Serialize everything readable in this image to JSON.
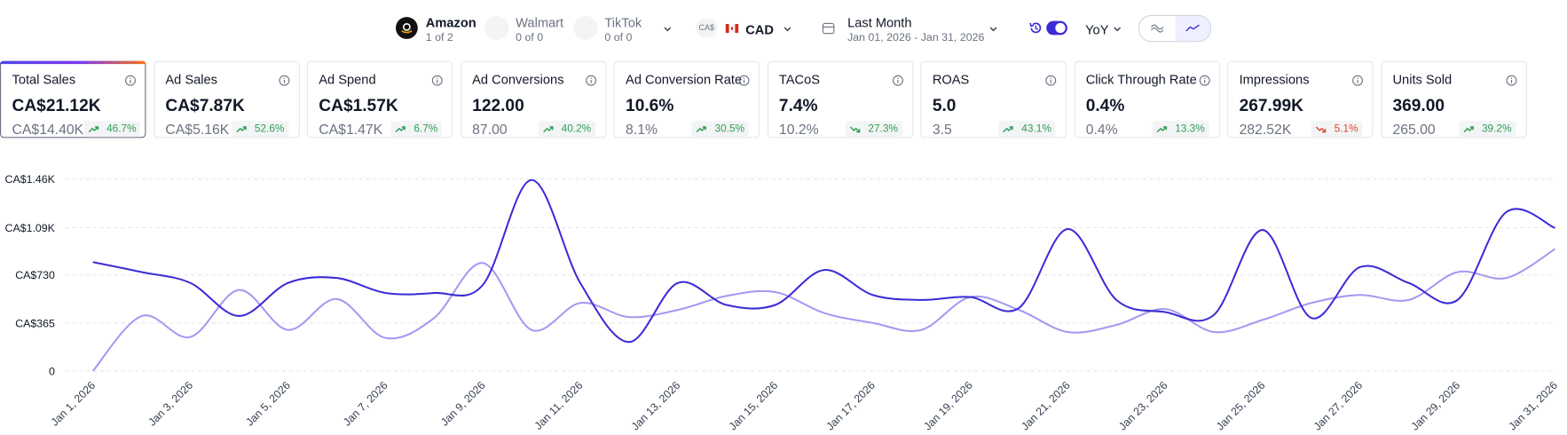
{
  "marketplaces": [
    {
      "name": "Amazon",
      "count": "1 of 2"
    },
    {
      "name": "Walmart",
      "count": "0 of 0"
    },
    {
      "name": "TikTok",
      "count": "0 of 0"
    }
  ],
  "currency": {
    "symbol": "CA$",
    "code": "CAD"
  },
  "date_range": {
    "label": "Last Month",
    "range": "Jan 01, 2026 - Jan 31, 2026"
  },
  "comparison": "YoY",
  "metrics": [
    {
      "title": "Total Sales",
      "value": "CA$21.12K",
      "previous": "CA$14.40K",
      "change": "46.7%",
      "trend": "up",
      "color": "#2f9e55"
    },
    {
      "title": "Ad Sales",
      "value": "CA$7.87K",
      "previous": "CA$5.16K",
      "change": "52.6%",
      "trend": "up",
      "color": "#2f9e55"
    },
    {
      "title": "Ad Spend",
      "value": "CA$1.57K",
      "previous": "CA$1.47K",
      "change": "6.7%",
      "trend": "up",
      "color": "#2f9e55"
    },
    {
      "title": "Ad Conversions",
      "value": "122.00",
      "previous": "87.00",
      "change": "40.2%",
      "trend": "up",
      "color": "#2f9e55"
    },
    {
      "title": "Ad Conversion Rate",
      "value": "10.6%",
      "previous": "8.1%",
      "change": "30.5%",
      "trend": "up",
      "color": "#2f9e55"
    },
    {
      "title": "TACoS",
      "value": "7.4%",
      "previous": "10.2%",
      "change": "27.3%",
      "trend": "down",
      "color": "#2f9e55"
    },
    {
      "title": "ROAS",
      "value": "5.0",
      "previous": "3.5",
      "change": "43.1%",
      "trend": "up",
      "color": "#2f9e55"
    },
    {
      "title": "Click Through Rate",
      "value": "0.4%",
      "previous": "0.4%",
      "change": "13.3%",
      "trend": "up",
      "color": "#2f9e55"
    },
    {
      "title": "Impressions",
      "value": "267.99K",
      "previous": "282.52K",
      "change": "5.1%",
      "trend": "down",
      "color": "#e0492f"
    },
    {
      "title": "Units Sold",
      "value": "369.00",
      "previous": "265.00",
      "change": "39.2%",
      "trend": "up",
      "color": "#2f9e55"
    }
  ],
  "chart_data": {
    "type": "line",
    "categories": [
      "Jan 1, 2026",
      null,
      "Jan 3, 2026",
      null,
      "Jan 5, 2026",
      null,
      "Jan 7, 2026",
      null,
      "Jan 9, 2026",
      null,
      "Jan 11, 2026",
      null,
      "Jan 13, 2026",
      null,
      "Jan 15, 2026",
      null,
      "Jan 17, 2026",
      null,
      "Jan 19, 2026",
      null,
      "Jan 21, 2026",
      null,
      "Jan 23, 2026",
      null,
      "Jan 25, 2026",
      null,
      "Jan 27, 2026",
      null,
      "Jan 29, 2026",
      null,
      "Jan 31, 2026"
    ],
    "series": [
      {
        "color": "#3b2bd6",
        "values": [
          828,
          752,
          669,
          418,
          669,
          707,
          593,
          593,
          654,
          1452,
          669,
          220,
          669,
          502,
          502,
          768,
          578,
          540,
          562,
          479,
          1079,
          540,
          448,
          426,
          1072,
          403,
          790,
          669,
          540,
          1208,
          1087
        ]
      },
      {
        "color": "#a598f0",
        "values": [
          0,
          418,
          258,
          616,
          312,
          547,
          251,
          403,
          821,
          312,
          517,
          410,
          464,
          570,
          600,
          441,
          365,
          312,
          562,
          464,
          296,
          350,
          471,
          296,
          388,
          517,
          578,
          540,
          752,
          707,
          927
        ]
      }
    ],
    "ylim": [
      0,
      1460
    ],
    "yticks": [
      0,
      {
        "value": 365,
        "label": "CA$365"
      },
      {
        "value": 730,
        "label": "CA$730"
      },
      {
        "value": 1090,
        "label": "CA$1.09K"
      },
      {
        "value": 1460,
        "label": "CA$1.46K"
      }
    ],
    "grid": true
  }
}
